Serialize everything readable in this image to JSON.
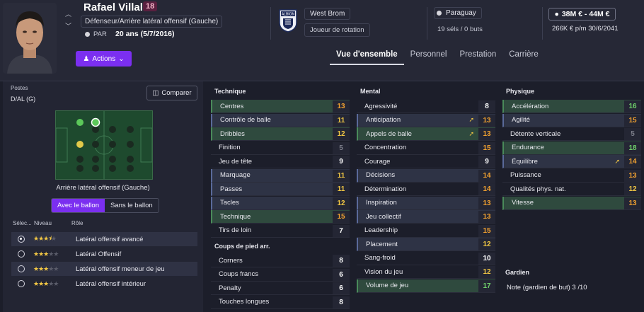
{
  "player": {
    "name": "Rafael Villalba",
    "number": "18",
    "position": "Défenseur/Arrière latéral offensif (Gauche)",
    "nation_code": "PAR",
    "age": "20 ans (5/7/2016)",
    "actions_label": "Actions"
  },
  "club": {
    "name": "West Brom",
    "role": "Joueur de rotation",
    "crest_text": "ALBION"
  },
  "nation": {
    "name": "Paraguay",
    "caps": "19 séls / 0 buts"
  },
  "value": {
    "range": "38M € - 44M €",
    "contract": "266K € p/m  30/6/2041"
  },
  "tabs": [
    "Vue d'ensemble",
    "Personnel",
    "Prestation",
    "Carrière"
  ],
  "left": {
    "positions_label": "Postes",
    "positions_value": "D/AL (G)",
    "compare_label": "Comparer",
    "role_title": "Arrière latéral offensif (Gauche)",
    "duty_on": "Avec le ballon",
    "duty_off": "Sans le ballon",
    "head_select": "Sélec...",
    "head_level": "Niveau",
    "head_role": "Rôle",
    "roles": [
      {
        "name": "Latéral offensif avancé",
        "stars": 3.5,
        "selected": true
      },
      {
        "name": "Latéral Offensif",
        "stars": 3,
        "selected": false
      },
      {
        "name": "Latéral offensif meneur de jeu",
        "stars": 3,
        "selected": false
      },
      {
        "name": "Latéral offensif intérieur",
        "stars": 3,
        "selected": false
      }
    ]
  },
  "technique": {
    "title": "Technique",
    "attrs": [
      {
        "name": "Centres",
        "value": "13"
      },
      {
        "name": "Contrôle de balle",
        "value": "11"
      },
      {
        "name": "Dribbles",
        "value": "12"
      },
      {
        "name": "Finition",
        "value": "5"
      },
      {
        "name": "Jeu de tête",
        "value": "9"
      },
      {
        "name": "Marquage",
        "value": "11"
      },
      {
        "name": "Passes",
        "value": "11"
      },
      {
        "name": "Tacles",
        "value": "12"
      },
      {
        "name": "Technique",
        "value": "15"
      },
      {
        "name": "Tirs de loin",
        "value": "7"
      }
    ]
  },
  "setpieces": {
    "title": "Coups de pied arr.",
    "attrs": [
      {
        "name": "Corners",
        "value": "8"
      },
      {
        "name": "Coups francs",
        "value": "6"
      },
      {
        "name": "Penalty",
        "value": "6"
      },
      {
        "name": "Touches longues",
        "value": "8"
      }
    ]
  },
  "mental": {
    "title": "Mental",
    "attrs": [
      {
        "name": "Agressivité",
        "value": "8"
      },
      {
        "name": "Anticipation",
        "value": "13"
      },
      {
        "name": "Appels de balle",
        "value": "13"
      },
      {
        "name": "Concentration",
        "value": "15"
      },
      {
        "name": "Courage",
        "value": "9"
      },
      {
        "name": "Décisions",
        "value": "14"
      },
      {
        "name": "Détermination",
        "value": "14"
      },
      {
        "name": "Inspiration",
        "value": "13"
      },
      {
        "name": "Jeu collectif",
        "value": "13"
      },
      {
        "name": "Leadership",
        "value": "15"
      },
      {
        "name": "Placement",
        "value": "12"
      },
      {
        "name": "Sang-froid",
        "value": "10"
      },
      {
        "name": "Vision du jeu",
        "value": "12"
      },
      {
        "name": "Volume de jeu",
        "value": "17"
      }
    ]
  },
  "physique": {
    "title": "Physique",
    "attrs": [
      {
        "name": "Accélération",
        "value": "16"
      },
      {
        "name": "Agilité",
        "value": "15"
      },
      {
        "name": "Détente verticale",
        "value": "5"
      },
      {
        "name": "Endurance",
        "value": "18"
      },
      {
        "name": "Équilibre",
        "value": "14"
      },
      {
        "name": "Puissance",
        "value": "13"
      },
      {
        "name": "Qualités phys. nat.",
        "value": "12"
      },
      {
        "name": "Vitesse",
        "value": "13"
      }
    ]
  },
  "goalkeeper": {
    "title": "Gardien",
    "note": "Note (gardien de but)  3 /10"
  },
  "colors": {
    "accent": "#7b2ff0",
    "star": "#f2c744"
  }
}
